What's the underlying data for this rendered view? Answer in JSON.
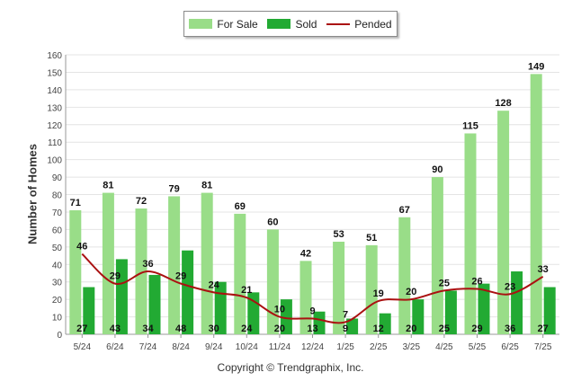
{
  "legend": [
    {
      "label": "For Sale",
      "color": "#99dd88"
    },
    {
      "label": "Sold",
      "color": "#22aa33"
    },
    {
      "label": "Pended",
      "color": "#aa1111"
    }
  ],
  "credit": "Copyright © Trendgraphix, Inc.",
  "chart_data": {
    "type": "bar",
    "title": "",
    "xlabel": "",
    "ylabel": "Number of Homes",
    "ylim": [
      0,
      160
    ],
    "yticks": [
      0,
      10,
      20,
      30,
      40,
      50,
      60,
      70,
      80,
      90,
      100,
      110,
      120,
      130,
      140,
      150,
      160
    ],
    "grid": true,
    "legend_position": "top-center",
    "categories": [
      "5/24",
      "6/24",
      "7/24",
      "8/24",
      "9/24",
      "10/24",
      "11/24",
      "12/24",
      "1/25",
      "2/25",
      "3/25",
      "4/25",
      "5/25",
      "6/25",
      "7/25"
    ],
    "series": [
      {
        "name": "For Sale",
        "type": "bar",
        "color": "#99dd88",
        "values": [
          71,
          81,
          72,
          79,
          81,
          69,
          60,
          42,
          53,
          51,
          67,
          90,
          115,
          128,
          149
        ]
      },
      {
        "name": "Sold",
        "type": "bar",
        "color": "#22aa33",
        "values": [
          27,
          43,
          34,
          48,
          30,
          24,
          20,
          13,
          9,
          12,
          20,
          25,
          29,
          36,
          27
        ]
      },
      {
        "name": "Pended",
        "type": "line",
        "color": "#aa1111",
        "values": [
          46,
          29,
          36,
          29,
          24,
          21,
          10,
          9,
          7,
          19,
          20,
          25,
          26,
          23,
          33
        ]
      }
    ]
  }
}
